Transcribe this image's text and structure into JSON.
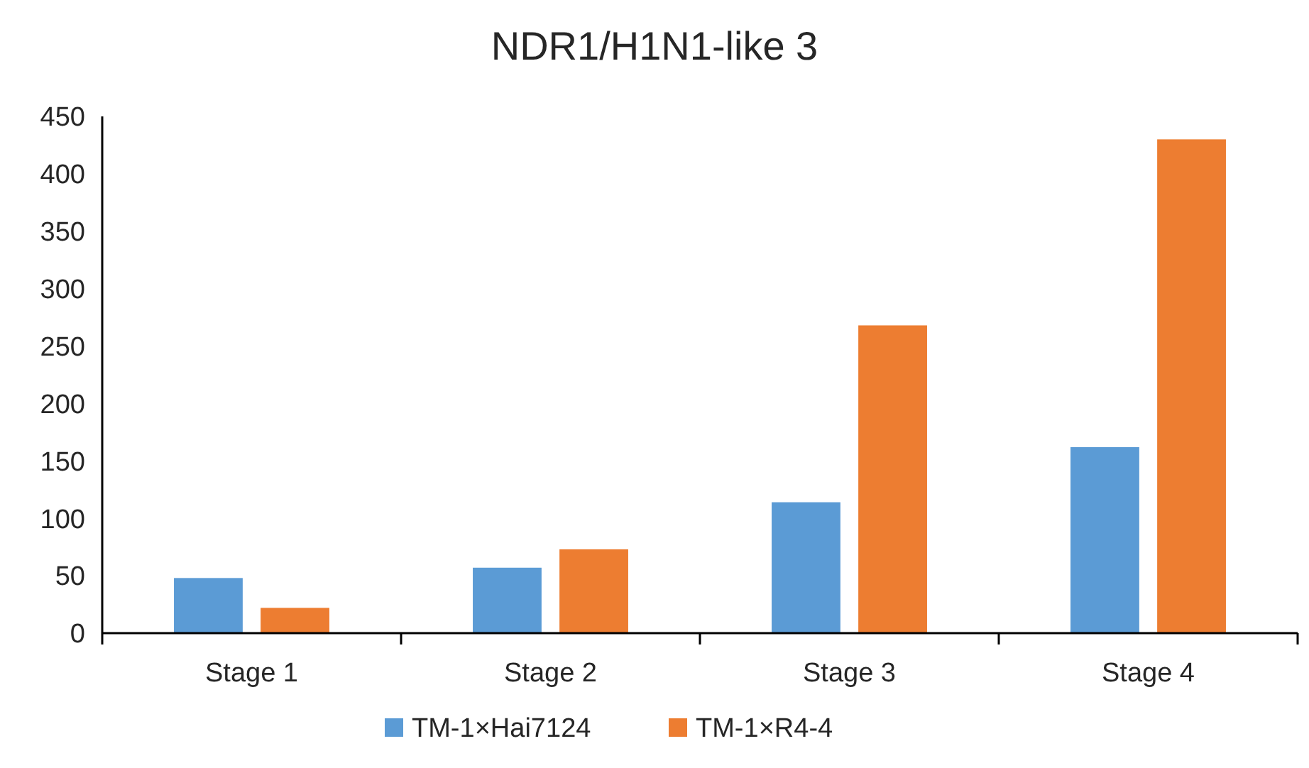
{
  "chart_data": {
    "type": "bar",
    "title": "NDR1/H1N1-like 3",
    "categories": [
      "Stage 1",
      "Stage 2",
      "Stage 3",
      "Stage 4"
    ],
    "series": [
      {
        "name": "TM-1×Hai7124",
        "color": "#5b9bd5",
        "values": [
          48,
          57,
          114,
          162
        ]
      },
      {
        "name": "TM-1×R4-4",
        "color": "#ed7d31",
        "values": [
          22,
          73,
          268,
          430
        ]
      }
    ],
    "ylim": [
      0,
      450
    ],
    "yticks": [
      0,
      50,
      100,
      150,
      200,
      250,
      300,
      350,
      400,
      450
    ],
    "grid": false,
    "legend": "bottom"
  }
}
